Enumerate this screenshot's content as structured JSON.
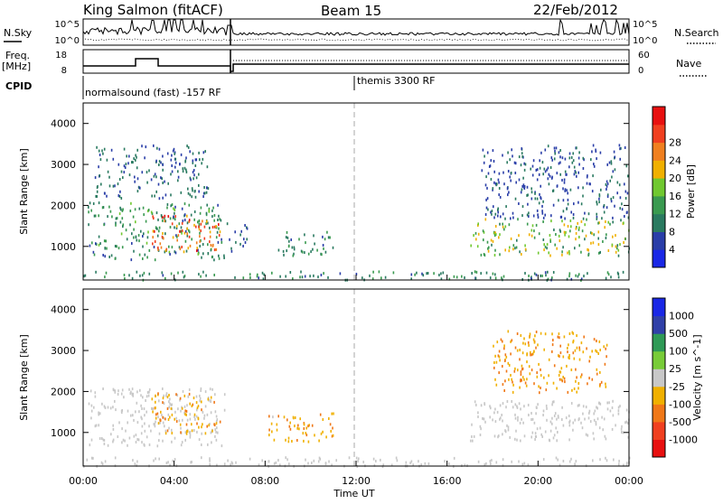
{
  "header": {
    "station": "King Salmon (fitACF)",
    "beam": "Beam 15",
    "date": "22/Feb/2012"
  },
  "panels": {
    "nsky_label": "N.Sky",
    "nsky_ticks": [
      "10^5",
      "10^0"
    ],
    "nsearch_label": "N.Search",
    "nsearch_ticks": [
      "10^5",
      "10^0"
    ],
    "freq_label_line1": "Freq.",
    "freq_label_line2": "[MHz]",
    "freq_ticks": [
      "18",
      "8"
    ],
    "nave_label": "Nave",
    "nave_ticks": [
      "60",
      "0"
    ],
    "cpid_label": "CPID",
    "cpid_segment1": "normalsound (fast) -157 RF",
    "cpid_segment2": "themis 3300 RF"
  },
  "axes": {
    "ylabel": "Slant Range [km]",
    "xlabel": "Time UT",
    "x_ticks": [
      "00:00",
      "04:00",
      "08:00",
      "12:00",
      "16:00",
      "20:00",
      "00:00"
    ],
    "y_ticks": [
      "1000",
      "2000",
      "3000",
      "4000"
    ]
  },
  "colors": {
    "power": [
      "#1a28e6",
      "#2a3ea8",
      "#2a7a60",
      "#3a9a50",
      "#70c830",
      "#f0b000",
      "#f08020",
      "#f04020",
      "#e81010"
    ],
    "velocity": [
      "#e81010",
      "#f04020",
      "#f07818",
      "#f0b000",
      "#c8c8c8",
      "#78cc38",
      "#2f9a56",
      "#3040a8",
      "#1a28e6"
    ]
  },
  "chart_data": [
    {
      "type": "heatmap",
      "name": "Power [dB]",
      "x_range_hours": [
        0,
        24
      ],
      "y_range_km": [
        180,
        4500
      ],
      "colorbar": {
        "label": "Power [dB]",
        "ticks": [
          "4",
          "8",
          "12",
          "16",
          "20",
          "24",
          "28"
        ],
        "range": [
          0,
          30
        ]
      },
      "scatter_regions": [
        {
          "t": [
            0.2,
            6.2
          ],
          "r": [
            700,
            2100
          ],
          "v": [
            6,
            14
          ]
        },
        {
          "t": [
            3.0,
            6.0
          ],
          "r": [
            900,
            1800
          ],
          "v": [
            18,
            28
          ]
        },
        {
          "t": [
            0.5,
            5.5
          ],
          "r": [
            2200,
            3500
          ],
          "v": [
            4,
            10
          ]
        },
        {
          "t": [
            6.3,
            7.2
          ],
          "r": [
            900,
            1600
          ],
          "v": [
            4,
            10
          ]
        },
        {
          "t": [
            8.5,
            11.0
          ],
          "r": [
            800,
            1400
          ],
          "v": [
            6,
            12
          ]
        },
        {
          "t": [
            0.0,
            24.0
          ],
          "r": [
            200,
            420
          ],
          "v": [
            6,
            12
          ]
        },
        {
          "t": [
            17.0,
            24.0
          ],
          "r": [
            800,
            1700
          ],
          "v": [
            8,
            20
          ]
        },
        {
          "t": [
            17.5,
            24.0
          ],
          "r": [
            1700,
            3500
          ],
          "v": [
            4,
            8
          ]
        }
      ]
    },
    {
      "type": "heatmap",
      "name": "Velocity [m s^-1]",
      "x_range_hours": [
        0,
        24
      ],
      "y_range_km": [
        180,
        4500
      ],
      "colorbar": {
        "label": "Velocity [m s^-1]",
        "ticks": [
          "1000",
          "500",
          "100",
          "25",
          "-25",
          "-100",
          "-500",
          "-1000"
        ],
        "range": [
          -1000,
          1000
        ]
      },
      "scatter_regions": [
        {
          "t": [
            0.2,
            6.2
          ],
          "r": [
            700,
            2100
          ],
          "v": [
            -25,
            25
          ]
        },
        {
          "t": [
            3.0,
            6.0
          ],
          "r": [
            1000,
            2000
          ],
          "v": [
            -500,
            -100
          ]
        },
        {
          "t": [
            8.0,
            11.0
          ],
          "r": [
            800,
            1500
          ],
          "v": [
            -500,
            -100
          ]
        },
        {
          "t": [
            0.0,
            24.0
          ],
          "r": [
            200,
            420
          ],
          "v": [
            -100,
            100
          ]
        },
        {
          "t": [
            17.0,
            24.0
          ],
          "r": [
            800,
            1800
          ],
          "v": [
            -25,
            25
          ]
        },
        {
          "t": [
            18.0,
            23.0
          ],
          "r": [
            2000,
            3500
          ],
          "v": [
            -500,
            -100
          ]
        }
      ]
    }
  ]
}
